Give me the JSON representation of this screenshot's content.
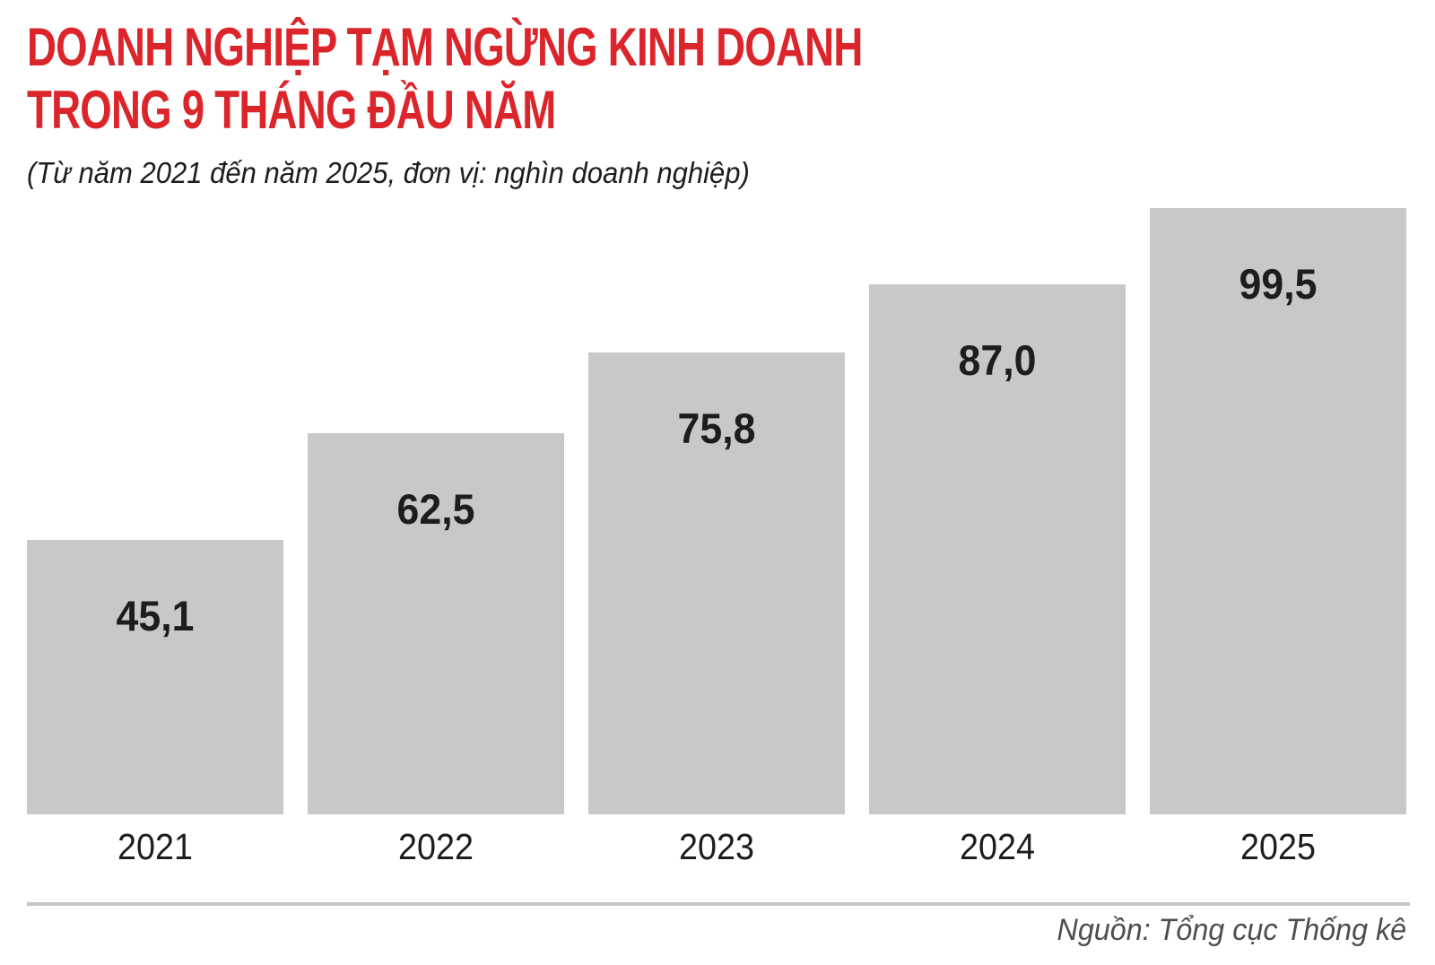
{
  "header": {
    "title_lines": [
      "DOANH NGHIỆP TẠM NGỪNG KINH DOANH",
      "TRONG 9 THÁNG ĐẦU NĂM"
    ],
    "subtitle": "(Từ năm 2021 đến năm 2025, đơn vị: nghìn doanh nghiệp)"
  },
  "chart_data": {
    "type": "bar",
    "title": "DOANH NGHIỆP TẠM NGỪNG KINH DOANH TRONG 9 THÁNG ĐẦU NĂM",
    "subtitle": "(Từ năm 2021 đến năm 2025, đơn vị: nghìn doanh nghiệp)",
    "unit": "nghìn doanh nghiệp",
    "categories": [
      "2021",
      "2022",
      "2023",
      "2024",
      "2025"
    ],
    "values": [
      45.1,
      62.5,
      75.8,
      87.0,
      99.5
    ],
    "value_labels": [
      "45,1",
      "62,5",
      "75,8",
      "87,0",
      "99,5"
    ],
    "ylim": [
      0,
      99.5
    ],
    "grid": false,
    "legend": false,
    "bar_color": "#c9c8c8",
    "value_label_color": "#1d1d1b"
  },
  "footer": {
    "source": "Nguồn: Tổng cục Thống kê"
  },
  "colors": {
    "title_red": "#dc242b",
    "bar_gray": "#c9c8c8",
    "divider_gray": "#c6c6c6",
    "source_gray": "#4e4e4e"
  }
}
